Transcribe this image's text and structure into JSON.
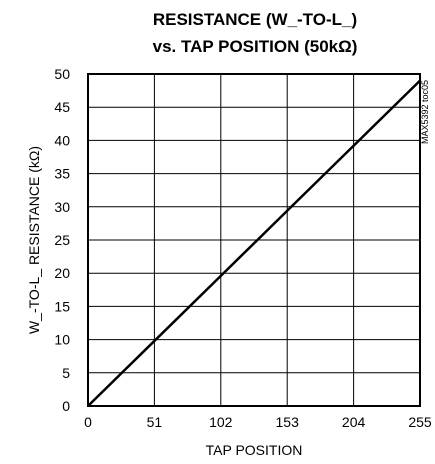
{
  "chart_data": {
    "type": "line",
    "title": [
      "RESISTANCE (W_-TO-L_)",
      "vs. TAP POSITION (50kΩ)"
    ],
    "xlabel": "TAP POSITION",
    "ylabel": "W_-TO-L_ RESISTANCE (kΩ)",
    "xlim": [
      0,
      255
    ],
    "ylim": [
      0,
      50
    ],
    "x_ticks": [
      0,
      51,
      102,
      153,
      204,
      255
    ],
    "y_ticks": [
      0,
      5,
      10,
      15,
      20,
      25,
      30,
      35,
      40,
      45,
      50
    ],
    "grid": true,
    "series": [
      {
        "x": [
          0,
          51,
          102,
          153,
          204,
          255
        ],
        "y": [
          0,
          9.8,
          19.6,
          29.4,
          39.2,
          49.0
        ]
      }
    ],
    "annotation": "MAX5392 toc05"
  }
}
